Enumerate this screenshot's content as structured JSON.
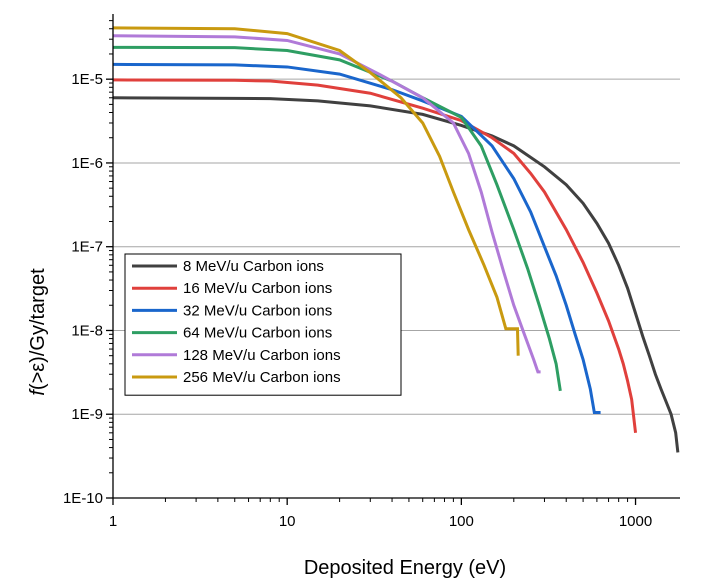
{
  "chart_data": {
    "type": "line",
    "xlabel": "Deposited Energy (eV)",
    "ylabel_parts": [
      "f",
      "(>ε)/Gy/target"
    ],
    "x_scale": "log",
    "y_scale": "log",
    "xlim": [
      1,
      1800
    ],
    "ylim": [
      1e-10,
      6e-05
    ],
    "x_ticks": [
      {
        "value": 1,
        "label": "1"
      },
      {
        "value": 10,
        "label": "10"
      },
      {
        "value": 100,
        "label": "100"
      },
      {
        "value": 1000,
        "label": "1000"
      }
    ],
    "y_ticks": [
      {
        "value": 1e-10,
        "label": "1E-10"
      },
      {
        "value": 1e-09,
        "label": "1E-9"
      },
      {
        "value": 1e-08,
        "label": "1E-8"
      },
      {
        "value": 1e-07,
        "label": "1E-7"
      },
      {
        "value": 1e-06,
        "label": "1E-6"
      },
      {
        "value": 1e-05,
        "label": "1E-5"
      }
    ],
    "grid": "horizontal",
    "legend_position": "middle-left",
    "series": [
      {
        "name": "8 MeV/u Carbon ions",
        "color": "#404040",
        "points": [
          [
            1,
            6e-06
          ],
          [
            5,
            5.9e-06
          ],
          [
            8,
            5.85e-06
          ],
          [
            15,
            5.5e-06
          ],
          [
            30,
            4.8e-06
          ],
          [
            60,
            3.8e-06
          ],
          [
            100,
            2.8e-06
          ],
          [
            150,
            2.1e-06
          ],
          [
            200,
            1.6e-06
          ],
          [
            300,
            9e-07
          ],
          [
            400,
            5.5e-07
          ],
          [
            500,
            3.3e-07
          ],
          [
            600,
            1.9e-07
          ],
          [
            700,
            1.1e-07
          ],
          [
            800,
            6e-08
          ],
          [
            900,
            3.2e-08
          ],
          [
            1000,
            1.6e-08
          ],
          [
            1100,
            8.5e-09
          ],
          [
            1200,
            5e-09
          ],
          [
            1300,
            3e-09
          ],
          [
            1400,
            2e-09
          ],
          [
            1500,
            1.4e-09
          ],
          [
            1600,
            1e-09
          ],
          [
            1700,
            6e-10
          ],
          [
            1750,
            3.5e-10
          ]
        ]
      },
      {
        "name": "16 MeV/u Carbon ions",
        "color": "#e0403c",
        "points": [
          [
            1,
            9.8e-06
          ],
          [
            5,
            9.7e-06
          ],
          [
            8,
            9.5e-06
          ],
          [
            15,
            8.5e-06
          ],
          [
            30,
            6.8e-06
          ],
          [
            60,
            4.5e-06
          ],
          [
            100,
            3.2e-06
          ],
          [
            150,
            2e-06
          ],
          [
            200,
            1.3e-06
          ],
          [
            250,
            7.5e-07
          ],
          [
            300,
            4.5e-07
          ],
          [
            400,
            1.6e-07
          ],
          [
            500,
            6.5e-08
          ],
          [
            600,
            2.8e-08
          ],
          [
            700,
            1.3e-08
          ],
          [
            800,
            6e-09
          ],
          [
            850,
            4e-09
          ],
          [
            900,
            2.5e-09
          ],
          [
            950,
            1.5e-09
          ],
          [
            1000,
            6e-10
          ]
        ]
      },
      {
        "name": "32 MeV/u Carbon ions",
        "color": "#1a66cc",
        "points": [
          [
            1,
            1.5e-05
          ],
          [
            5,
            1.48e-05
          ],
          [
            10,
            1.4e-05
          ],
          [
            20,
            1.15e-05
          ],
          [
            40,
            7.5e-06
          ],
          [
            60,
            5.5e-06
          ],
          [
            100,
            3.6e-06
          ],
          [
            150,
            1.6e-06
          ],
          [
            200,
            6.5e-07
          ],
          [
            250,
            2.6e-07
          ],
          [
            300,
            1e-07
          ],
          [
            350,
            4.5e-08
          ],
          [
            400,
            2e-08
          ],
          [
            450,
            9e-09
          ],
          [
            500,
            4.5e-09
          ],
          [
            550,
            2e-09
          ],
          [
            580,
            1.05e-09
          ],
          [
            630,
            1.05e-09
          ]
        ]
      },
      {
        "name": "64 MeV/u Carbon ions",
        "color": "#2e9e63",
        "points": [
          [
            1,
            2.4e-05
          ],
          [
            5,
            2.38e-05
          ],
          [
            10,
            2.2e-05
          ],
          [
            20,
            1.7e-05
          ],
          [
            40,
            9.5e-06
          ],
          [
            60,
            6e-06
          ],
          [
            100,
            3.5e-06
          ],
          [
            130,
            1.6e-06
          ],
          [
            160,
            5.5e-07
          ],
          [
            200,
            1.6e-07
          ],
          [
            240,
            5.5e-08
          ],
          [
            280,
            2e-08
          ],
          [
            320,
            8e-09
          ],
          [
            350,
            4e-09
          ],
          [
            370,
            1.9e-09
          ]
        ]
      },
      {
        "name": "128 MeV/u Carbon ions",
        "color": "#b07ad8",
        "points": [
          [
            1,
            3.3e-05
          ],
          [
            5,
            3.2e-05
          ],
          [
            10,
            2.9e-05
          ],
          [
            20,
            2e-05
          ],
          [
            35,
            1.1e-05
          ],
          [
            60,
            6e-06
          ],
          [
            90,
            3e-06
          ],
          [
            110,
            1.3e-06
          ],
          [
            130,
            4.5e-07
          ],
          [
            150,
            1.5e-07
          ],
          [
            175,
            5e-08
          ],
          [
            200,
            2e-08
          ],
          [
            230,
            9e-09
          ],
          [
            260,
            4.5e-09
          ],
          [
            275,
            3.2e-09
          ],
          [
            285,
            3.2e-09
          ]
        ]
      },
      {
        "name": "256 MeV/u Carbon ions",
        "color": "#c99a10",
        "points": [
          [
            1,
            4.1e-05
          ],
          [
            5,
            4e-05
          ],
          [
            10,
            3.5e-05
          ],
          [
            20,
            2.2e-05
          ],
          [
            30,
            1.2e-05
          ],
          [
            45,
            6e-06
          ],
          [
            60,
            3e-06
          ],
          [
            75,
            1.2e-06
          ],
          [
            90,
            4.5e-07
          ],
          [
            110,
            1.6e-07
          ],
          [
            135,
            6e-08
          ],
          [
            160,
            2.5e-08
          ],
          [
            180,
            1.05e-08
          ],
          [
            210,
            1.05e-08
          ],
          [
            212,
            5e-09
          ]
        ]
      }
    ]
  }
}
